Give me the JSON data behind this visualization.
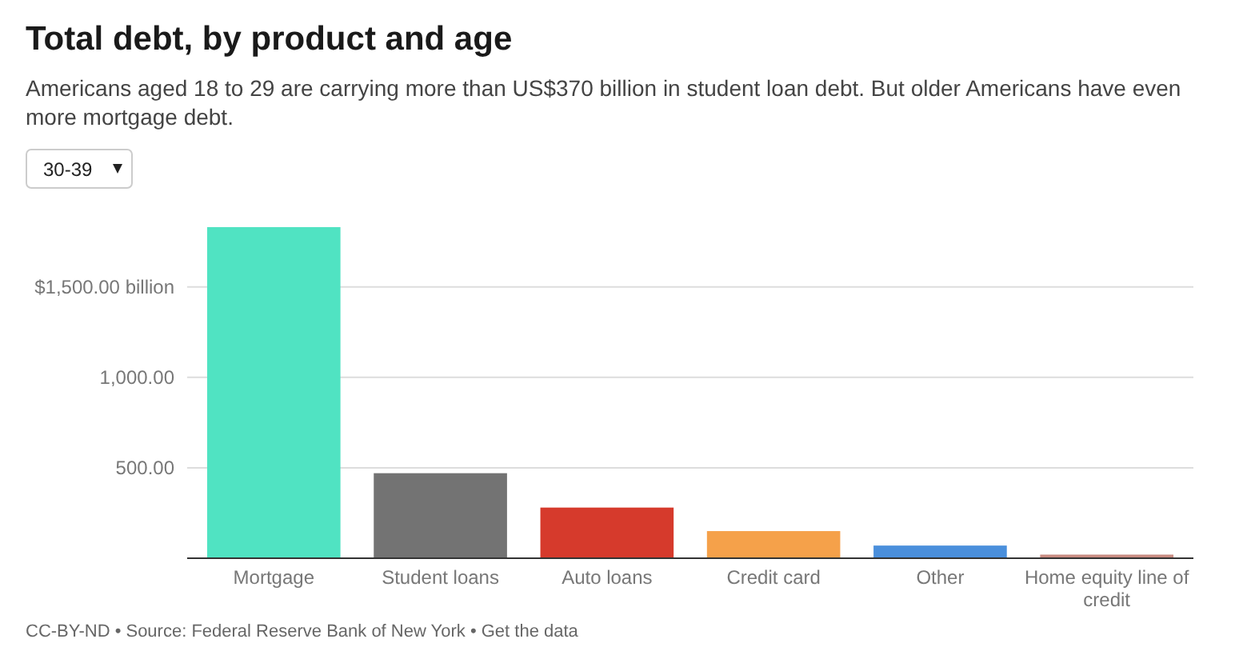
{
  "chart_data": {
    "type": "bar",
    "title": "Total debt, by product and age",
    "subtitle": "Americans aged 18 to 29 are carrying more than US$370 billion in student loan debt. But older Americans have even more mortgage debt.",
    "categories": [
      "Mortgage",
      "Student loans",
      "Auto loans",
      "Credit card",
      "Other",
      "Home equity line of credit"
    ],
    "values": [
      1830,
      470,
      280,
      150,
      70,
      20
    ],
    "colors": [
      "#50e3c2",
      "#737373",
      "#d63a2c",
      "#f5a14a",
      "#4a8fdc",
      "#c98c82"
    ],
    "ylim": [
      0,
      1830
    ],
    "yticks": [
      {
        "value": 500,
        "label": "500.00"
      },
      {
        "value": 1000,
        "label": "1,000.00"
      },
      {
        "value": 1500,
        "label": "$1,500.00 billion"
      }
    ],
    "grid": "y",
    "annotations": [
      "30-39",
      "CC-BY-ND • Source: Federal Reserve Bank of New York • Get the data"
    ]
  }
}
